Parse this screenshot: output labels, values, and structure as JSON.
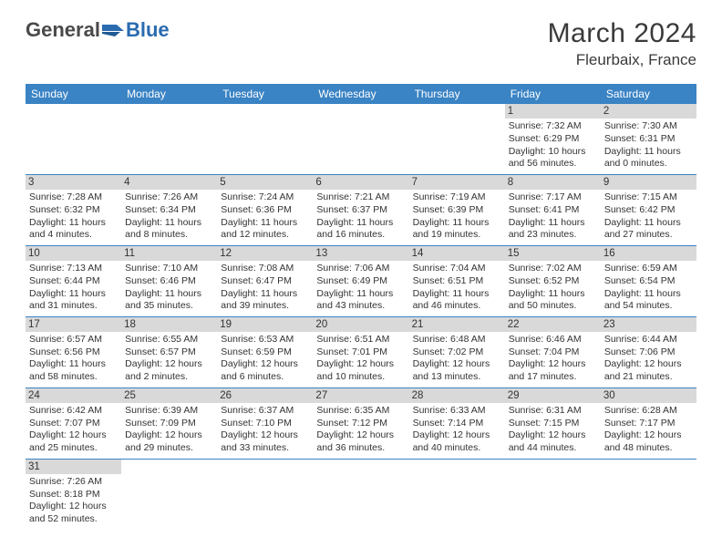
{
  "brand": {
    "part1": "General",
    "part2": "Blue"
  },
  "title": "March 2024",
  "location": "Fleurbaix, France",
  "colors": {
    "header_bg": "#3a83c4",
    "daynum_bg": "#d9d9d9",
    "row_border": "#3a83c4",
    "text": "#333333",
    "brand_gray": "#4a4a4a",
    "brand_blue": "#2a6bb0"
  },
  "weekdays": [
    "Sunday",
    "Monday",
    "Tuesday",
    "Wednesday",
    "Thursday",
    "Friday",
    "Saturday"
  ],
  "weeks": [
    [
      null,
      null,
      null,
      null,
      null,
      {
        "n": "1",
        "sr": "Sunrise: 7:32 AM",
        "ss": "Sunset: 6:29 PM",
        "d1": "Daylight: 10 hours",
        "d2": "and 56 minutes."
      },
      {
        "n": "2",
        "sr": "Sunrise: 7:30 AM",
        "ss": "Sunset: 6:31 PM",
        "d1": "Daylight: 11 hours",
        "d2": "and 0 minutes."
      }
    ],
    [
      {
        "n": "3",
        "sr": "Sunrise: 7:28 AM",
        "ss": "Sunset: 6:32 PM",
        "d1": "Daylight: 11 hours",
        "d2": "and 4 minutes."
      },
      {
        "n": "4",
        "sr": "Sunrise: 7:26 AM",
        "ss": "Sunset: 6:34 PM",
        "d1": "Daylight: 11 hours",
        "d2": "and 8 minutes."
      },
      {
        "n": "5",
        "sr": "Sunrise: 7:24 AM",
        "ss": "Sunset: 6:36 PM",
        "d1": "Daylight: 11 hours",
        "d2": "and 12 minutes."
      },
      {
        "n": "6",
        "sr": "Sunrise: 7:21 AM",
        "ss": "Sunset: 6:37 PM",
        "d1": "Daylight: 11 hours",
        "d2": "and 16 minutes."
      },
      {
        "n": "7",
        "sr": "Sunrise: 7:19 AM",
        "ss": "Sunset: 6:39 PM",
        "d1": "Daylight: 11 hours",
        "d2": "and 19 minutes."
      },
      {
        "n": "8",
        "sr": "Sunrise: 7:17 AM",
        "ss": "Sunset: 6:41 PM",
        "d1": "Daylight: 11 hours",
        "d2": "and 23 minutes."
      },
      {
        "n": "9",
        "sr": "Sunrise: 7:15 AM",
        "ss": "Sunset: 6:42 PM",
        "d1": "Daylight: 11 hours",
        "d2": "and 27 minutes."
      }
    ],
    [
      {
        "n": "10",
        "sr": "Sunrise: 7:13 AM",
        "ss": "Sunset: 6:44 PM",
        "d1": "Daylight: 11 hours",
        "d2": "and 31 minutes."
      },
      {
        "n": "11",
        "sr": "Sunrise: 7:10 AM",
        "ss": "Sunset: 6:46 PM",
        "d1": "Daylight: 11 hours",
        "d2": "and 35 minutes."
      },
      {
        "n": "12",
        "sr": "Sunrise: 7:08 AM",
        "ss": "Sunset: 6:47 PM",
        "d1": "Daylight: 11 hours",
        "d2": "and 39 minutes."
      },
      {
        "n": "13",
        "sr": "Sunrise: 7:06 AM",
        "ss": "Sunset: 6:49 PM",
        "d1": "Daylight: 11 hours",
        "d2": "and 43 minutes."
      },
      {
        "n": "14",
        "sr": "Sunrise: 7:04 AM",
        "ss": "Sunset: 6:51 PM",
        "d1": "Daylight: 11 hours",
        "d2": "and 46 minutes."
      },
      {
        "n": "15",
        "sr": "Sunrise: 7:02 AM",
        "ss": "Sunset: 6:52 PM",
        "d1": "Daylight: 11 hours",
        "d2": "and 50 minutes."
      },
      {
        "n": "16",
        "sr": "Sunrise: 6:59 AM",
        "ss": "Sunset: 6:54 PM",
        "d1": "Daylight: 11 hours",
        "d2": "and 54 minutes."
      }
    ],
    [
      {
        "n": "17",
        "sr": "Sunrise: 6:57 AM",
        "ss": "Sunset: 6:56 PM",
        "d1": "Daylight: 11 hours",
        "d2": "and 58 minutes."
      },
      {
        "n": "18",
        "sr": "Sunrise: 6:55 AM",
        "ss": "Sunset: 6:57 PM",
        "d1": "Daylight: 12 hours",
        "d2": "and 2 minutes."
      },
      {
        "n": "19",
        "sr": "Sunrise: 6:53 AM",
        "ss": "Sunset: 6:59 PM",
        "d1": "Daylight: 12 hours",
        "d2": "and 6 minutes."
      },
      {
        "n": "20",
        "sr": "Sunrise: 6:51 AM",
        "ss": "Sunset: 7:01 PM",
        "d1": "Daylight: 12 hours",
        "d2": "and 10 minutes."
      },
      {
        "n": "21",
        "sr": "Sunrise: 6:48 AM",
        "ss": "Sunset: 7:02 PM",
        "d1": "Daylight: 12 hours",
        "d2": "and 13 minutes."
      },
      {
        "n": "22",
        "sr": "Sunrise: 6:46 AM",
        "ss": "Sunset: 7:04 PM",
        "d1": "Daylight: 12 hours",
        "d2": "and 17 minutes."
      },
      {
        "n": "23",
        "sr": "Sunrise: 6:44 AM",
        "ss": "Sunset: 7:06 PM",
        "d1": "Daylight: 12 hours",
        "d2": "and 21 minutes."
      }
    ],
    [
      {
        "n": "24",
        "sr": "Sunrise: 6:42 AM",
        "ss": "Sunset: 7:07 PM",
        "d1": "Daylight: 12 hours",
        "d2": "and 25 minutes."
      },
      {
        "n": "25",
        "sr": "Sunrise: 6:39 AM",
        "ss": "Sunset: 7:09 PM",
        "d1": "Daylight: 12 hours",
        "d2": "and 29 minutes."
      },
      {
        "n": "26",
        "sr": "Sunrise: 6:37 AM",
        "ss": "Sunset: 7:10 PM",
        "d1": "Daylight: 12 hours",
        "d2": "and 33 minutes."
      },
      {
        "n": "27",
        "sr": "Sunrise: 6:35 AM",
        "ss": "Sunset: 7:12 PM",
        "d1": "Daylight: 12 hours",
        "d2": "and 36 minutes."
      },
      {
        "n": "28",
        "sr": "Sunrise: 6:33 AM",
        "ss": "Sunset: 7:14 PM",
        "d1": "Daylight: 12 hours",
        "d2": "and 40 minutes."
      },
      {
        "n": "29",
        "sr": "Sunrise: 6:31 AM",
        "ss": "Sunset: 7:15 PM",
        "d1": "Daylight: 12 hours",
        "d2": "and 44 minutes."
      },
      {
        "n": "30",
        "sr": "Sunrise: 6:28 AM",
        "ss": "Sunset: 7:17 PM",
        "d1": "Daylight: 12 hours",
        "d2": "and 48 minutes."
      }
    ],
    [
      {
        "n": "31",
        "sr": "Sunrise: 7:26 AM",
        "ss": "Sunset: 8:18 PM",
        "d1": "Daylight: 12 hours",
        "d2": "and 52 minutes."
      },
      null,
      null,
      null,
      null,
      null,
      null
    ]
  ]
}
